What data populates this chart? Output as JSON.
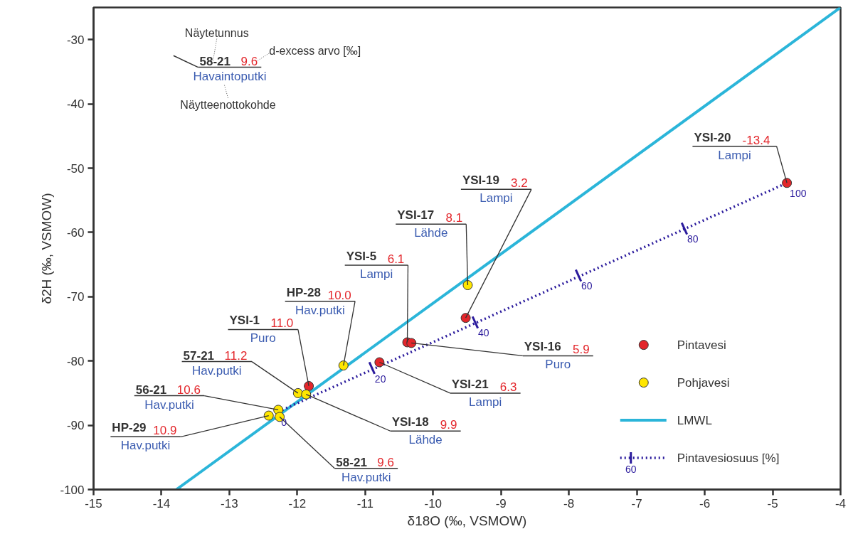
{
  "chart_data": {
    "type": "scatter",
    "xlabel": "δ18O (‰, VSMOW)",
    "ylabel": "δ2H (‰, VSMOW)",
    "xlim": [
      -15,
      -4
    ],
    "ylim": [
      -100,
      -25
    ],
    "xticks": [
      -15,
      -14,
      -13,
      -12,
      -11,
      -10,
      -9,
      -8,
      -7,
      -6,
      -5,
      -4
    ],
    "yticks": [
      -100,
      -90,
      -80,
      -70,
      -60,
      -50,
      -40,
      -30
    ],
    "grid": false,
    "legend": "bottom right",
    "series": [
      {
        "name": "Pintavesi",
        "marker": "circle",
        "color": "#e3262b",
        "x": [
          -4.79,
          -9.52,
          -10.38,
          -10.32,
          -10.79,
          -11.83
        ],
        "values": [
          -52.3,
          -73.3,
          -77.1,
          -77.2,
          -80.2,
          -83.9
        ]
      },
      {
        "name": "Pohjavesi",
        "marker": "circle",
        "color": "#ffe600",
        "x": [
          -9.49,
          -11.32,
          -11.99,
          -11.87,
          -12.28,
          -12.42,
          -12.26
        ],
        "values": [
          -68.2,
          -80.7,
          -85.0,
          -85.2,
          -87.6,
          -88.5,
          -88.7
        ]
      },
      {
        "name": "LMWL",
        "type": "line",
        "color": "#2bb5d9",
        "x": [
          -13.78,
          -4
        ],
        "values": [
          -100,
          -25
        ]
      },
      {
        "name": "Pintavesiosuus [%]",
        "type": "line",
        "line_style": "dotted",
        "color": "#2a1a9c",
        "x": [
          -12.28,
          -4.79
        ],
        "values": [
          -87.9,
          -52.3
        ]
      }
    ],
    "annotations": [
      "YSI-20",
      {
        "text": "-13.4",
        "x": -4.79,
        "y": -52.3
      },
      "Lampi",
      "YSI-19",
      {
        "text": "3.2",
        "x": -9.52,
        "y": -73.3
      },
      "Lampi",
      "YSI-5",
      {
        "text": "6.1",
        "x": -10.38,
        "y": -77.1
      },
      "Lampi",
      {
        "text": "YSI-16",
        "x": -10.32,
        "y": -77.2
      },
      "5.9",
      "Puro",
      {
        "text": "YSI-21",
        "x": -10.79,
        "y": -80.2
      },
      "6.3",
      "Lampi",
      "YSI-1",
      {
        "text": "11.0",
        "x": -11.83,
        "y": -83.9
      },
      "Puro",
      "YSI-17",
      {
        "text": "8.1",
        "x": -9.49,
        "y": -68.2
      },
      "Lähde",
      "HP-28",
      {
        "text": "10.0",
        "x": -11.32,
        "y": -80.7
      },
      "Hav.putki",
      "57-21",
      {
        "text": "11.2",
        "x": -11.99,
        "y": -85.0
      },
      "Hav.putki",
      {
        "text": "YSI-18",
        "x": -11.87,
        "y": -85.2
      },
      "9.9",
      "Lähde",
      "56-21",
      {
        "text": "10.6",
        "x": -12.28,
        "y": -87.6
      },
      "Hav.putki",
      "HP-29",
      {
        "text": "10.9",
        "x": -12.42,
        "y": -88.5
      },
      "Hav.putki",
      {
        "text": "58-21",
        "x": -12.26,
        "y": -88.7
      },
      "9.6",
      "Hav.putki",
      "58-21",
      "9.6",
      "Havaintoputki",
      "Näytetunnus",
      "d-excess arvo [‰]",
      "Näytteenottokohde",
      "60",
      {
        "text": "0",
        "x": -12.28,
        "y": -87.9
      },
      {
        "text": "20",
        "x": -10.9,
        "y": -81.1
      },
      {
        "text": "40",
        "x": -9.38,
        "y": -74.0
      },
      {
        "text": "60",
        "x": -7.86,
        "y": -66.7
      },
      {
        "text": "80",
        "x": -6.3,
        "y": -59.4
      },
      {
        "text": "100",
        "x": -4.79,
        "y": -52.3
      }
    ]
  }
}
